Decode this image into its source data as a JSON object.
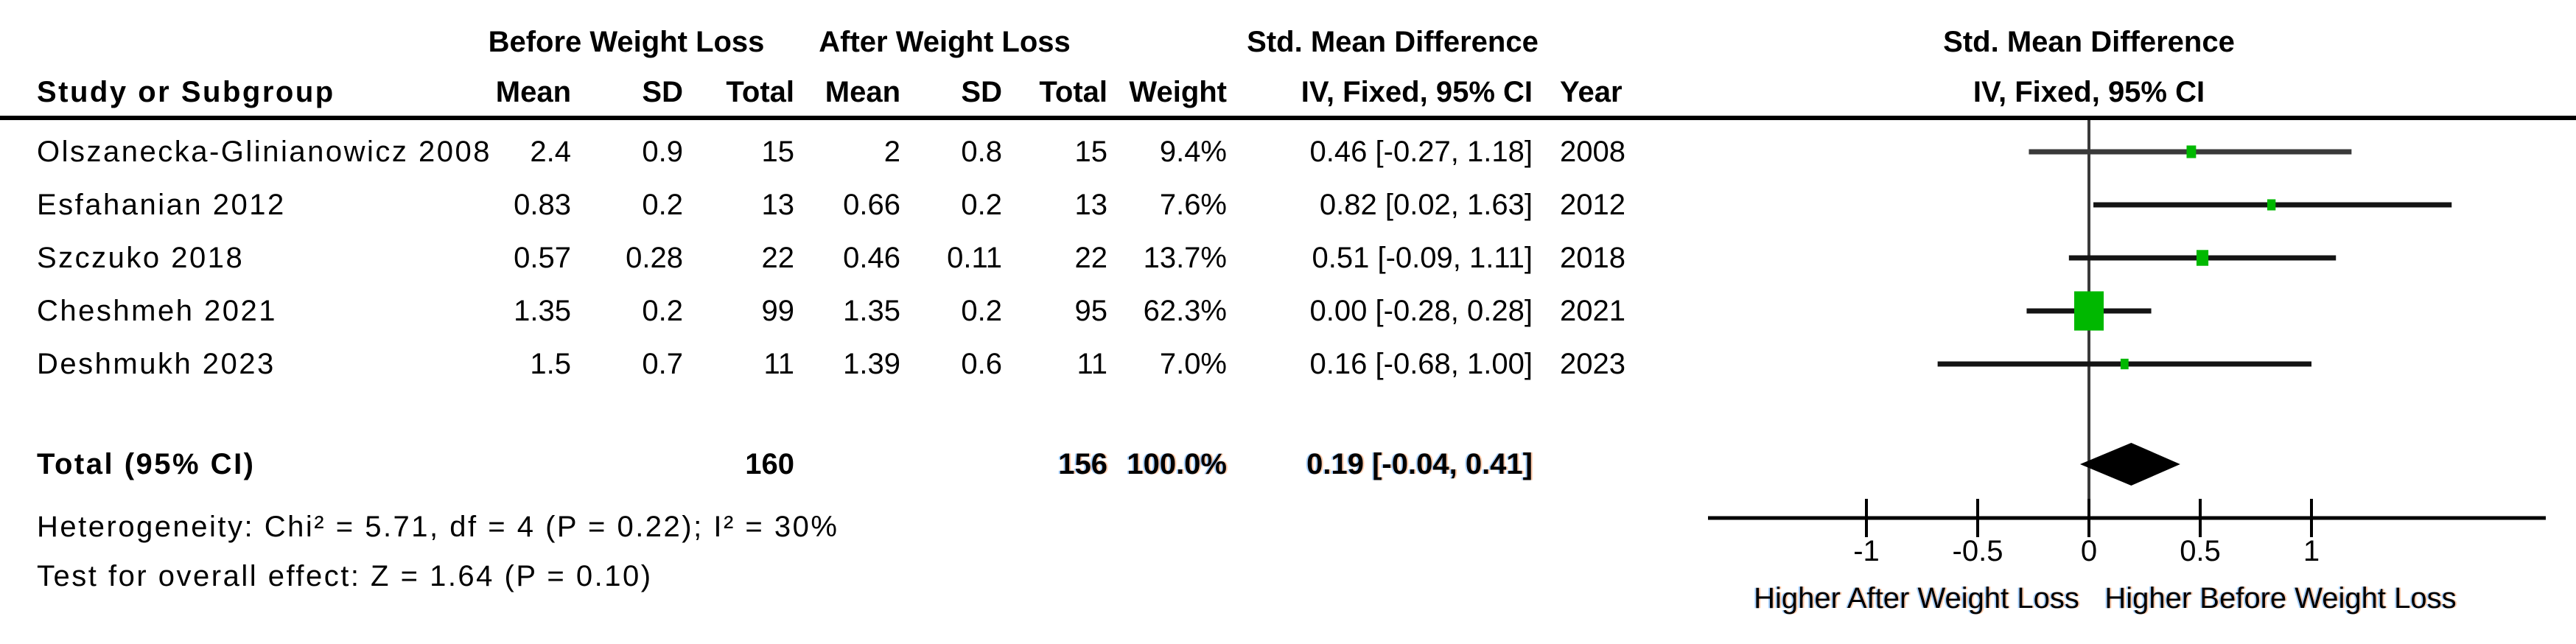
{
  "header": {
    "group_before": "Before Weight Loss",
    "group_after": "After Weight Loss",
    "smd_table": "Std. Mean Difference",
    "smd_plot": "Std. Mean Difference",
    "col_study": "Study or Subgroup",
    "col_mean": "Mean",
    "col_sd": "SD",
    "col_total": "Total",
    "col_weight": "Weight",
    "col_iv_table": "IV, Fixed, 95% CI",
    "col_year": "Year",
    "col_iv_plot": "IV, Fixed, 95% CI"
  },
  "colors": {
    "marker_green": "#00b800",
    "ci_line": "#141414",
    "ci_line_first": "#3a3a3a",
    "zero_line": "#3a3a3a",
    "axis": "#000000",
    "diamond": "#000000"
  },
  "chart_data": {
    "type": "forest",
    "effect_measure": "Std. Mean Difference",
    "model": "IV, Fixed, 95% CI",
    "x_ticks": [
      -1,
      -0.5,
      0,
      0.5,
      1
    ],
    "x_tick_labels": [
      "-1",
      "-0.5",
      "0",
      "0.5",
      "1"
    ],
    "x_label_left": "Higher After Weight Loss",
    "x_label_right": "Higher Before Weight Loss",
    "studies": [
      {
        "name": "Olszanecka-Glinianowicz 2008",
        "mean_before": "2.4",
        "sd_before": "0.9",
        "total_before": "15",
        "mean_after": "2",
        "sd_after": "0.8",
        "total_after": "15",
        "weight": "9.4%",
        "weight_pct": 9.4,
        "smd": 0.46,
        "ci_low": -0.27,
        "ci_high": 1.18,
        "ci_text": "0.46 [-0.27, 1.18]",
        "year": "2008"
      },
      {
        "name": "Esfahanian 2012",
        "mean_before": "0.83",
        "sd_before": "0.2",
        "total_before": "13",
        "mean_after": "0.66",
        "sd_after": "0.2",
        "total_after": "13",
        "weight": "7.6%",
        "weight_pct": 7.6,
        "smd": 0.82,
        "ci_low": 0.02,
        "ci_high": 1.63,
        "ci_text": "0.82 [0.02, 1.63]",
        "year": "2012"
      },
      {
        "name": "Szczuko 2018",
        "mean_before": "0.57",
        "sd_before": "0.28",
        "total_before": "22",
        "mean_after": "0.46",
        "sd_after": "0.11",
        "total_after": "22",
        "weight": "13.7%",
        "weight_pct": 13.7,
        "smd": 0.51,
        "ci_low": -0.09,
        "ci_high": 1.11,
        "ci_text": "0.51 [-0.09, 1.11]",
        "year": "2018"
      },
      {
        "name": "Cheshmeh 2021",
        "mean_before": "1.35",
        "sd_before": "0.2",
        "total_before": "99",
        "mean_after": "1.35",
        "sd_after": "0.2",
        "total_after": "95",
        "weight": "62.3%",
        "weight_pct": 62.3,
        "smd": 0.0,
        "ci_low": -0.28,
        "ci_high": 0.28,
        "ci_text": "0.00 [-0.28, 0.28]",
        "year": "2021"
      },
      {
        "name": "Deshmukh 2023",
        "mean_before": "1.5",
        "sd_before": "0.7",
        "total_before": "11",
        "mean_after": "1.39",
        "sd_after": "0.6",
        "total_after": "11",
        "weight": "7.0%",
        "weight_pct": 7.0,
        "smd": 0.16,
        "ci_low": -0.68,
        "ci_high": 1.0,
        "ci_text": "0.16 [-0.68, 1.00]",
        "year": "2023"
      }
    ],
    "total": {
      "label": "Total (95% CI)",
      "total_before": "160",
      "total_after": "156",
      "weight": "100.0%",
      "smd": 0.19,
      "ci_low": -0.04,
      "ci_high": 0.41,
      "ci_text": "0.19 [-0.04, 0.41]"
    },
    "heterogeneity": "Heterogeneity: Chi² = 5.71, df = 4 (P = 0.22); I² = 30%",
    "overall_effect": "Test for overall effect: Z = 1.64 (P = 0.10)"
  }
}
